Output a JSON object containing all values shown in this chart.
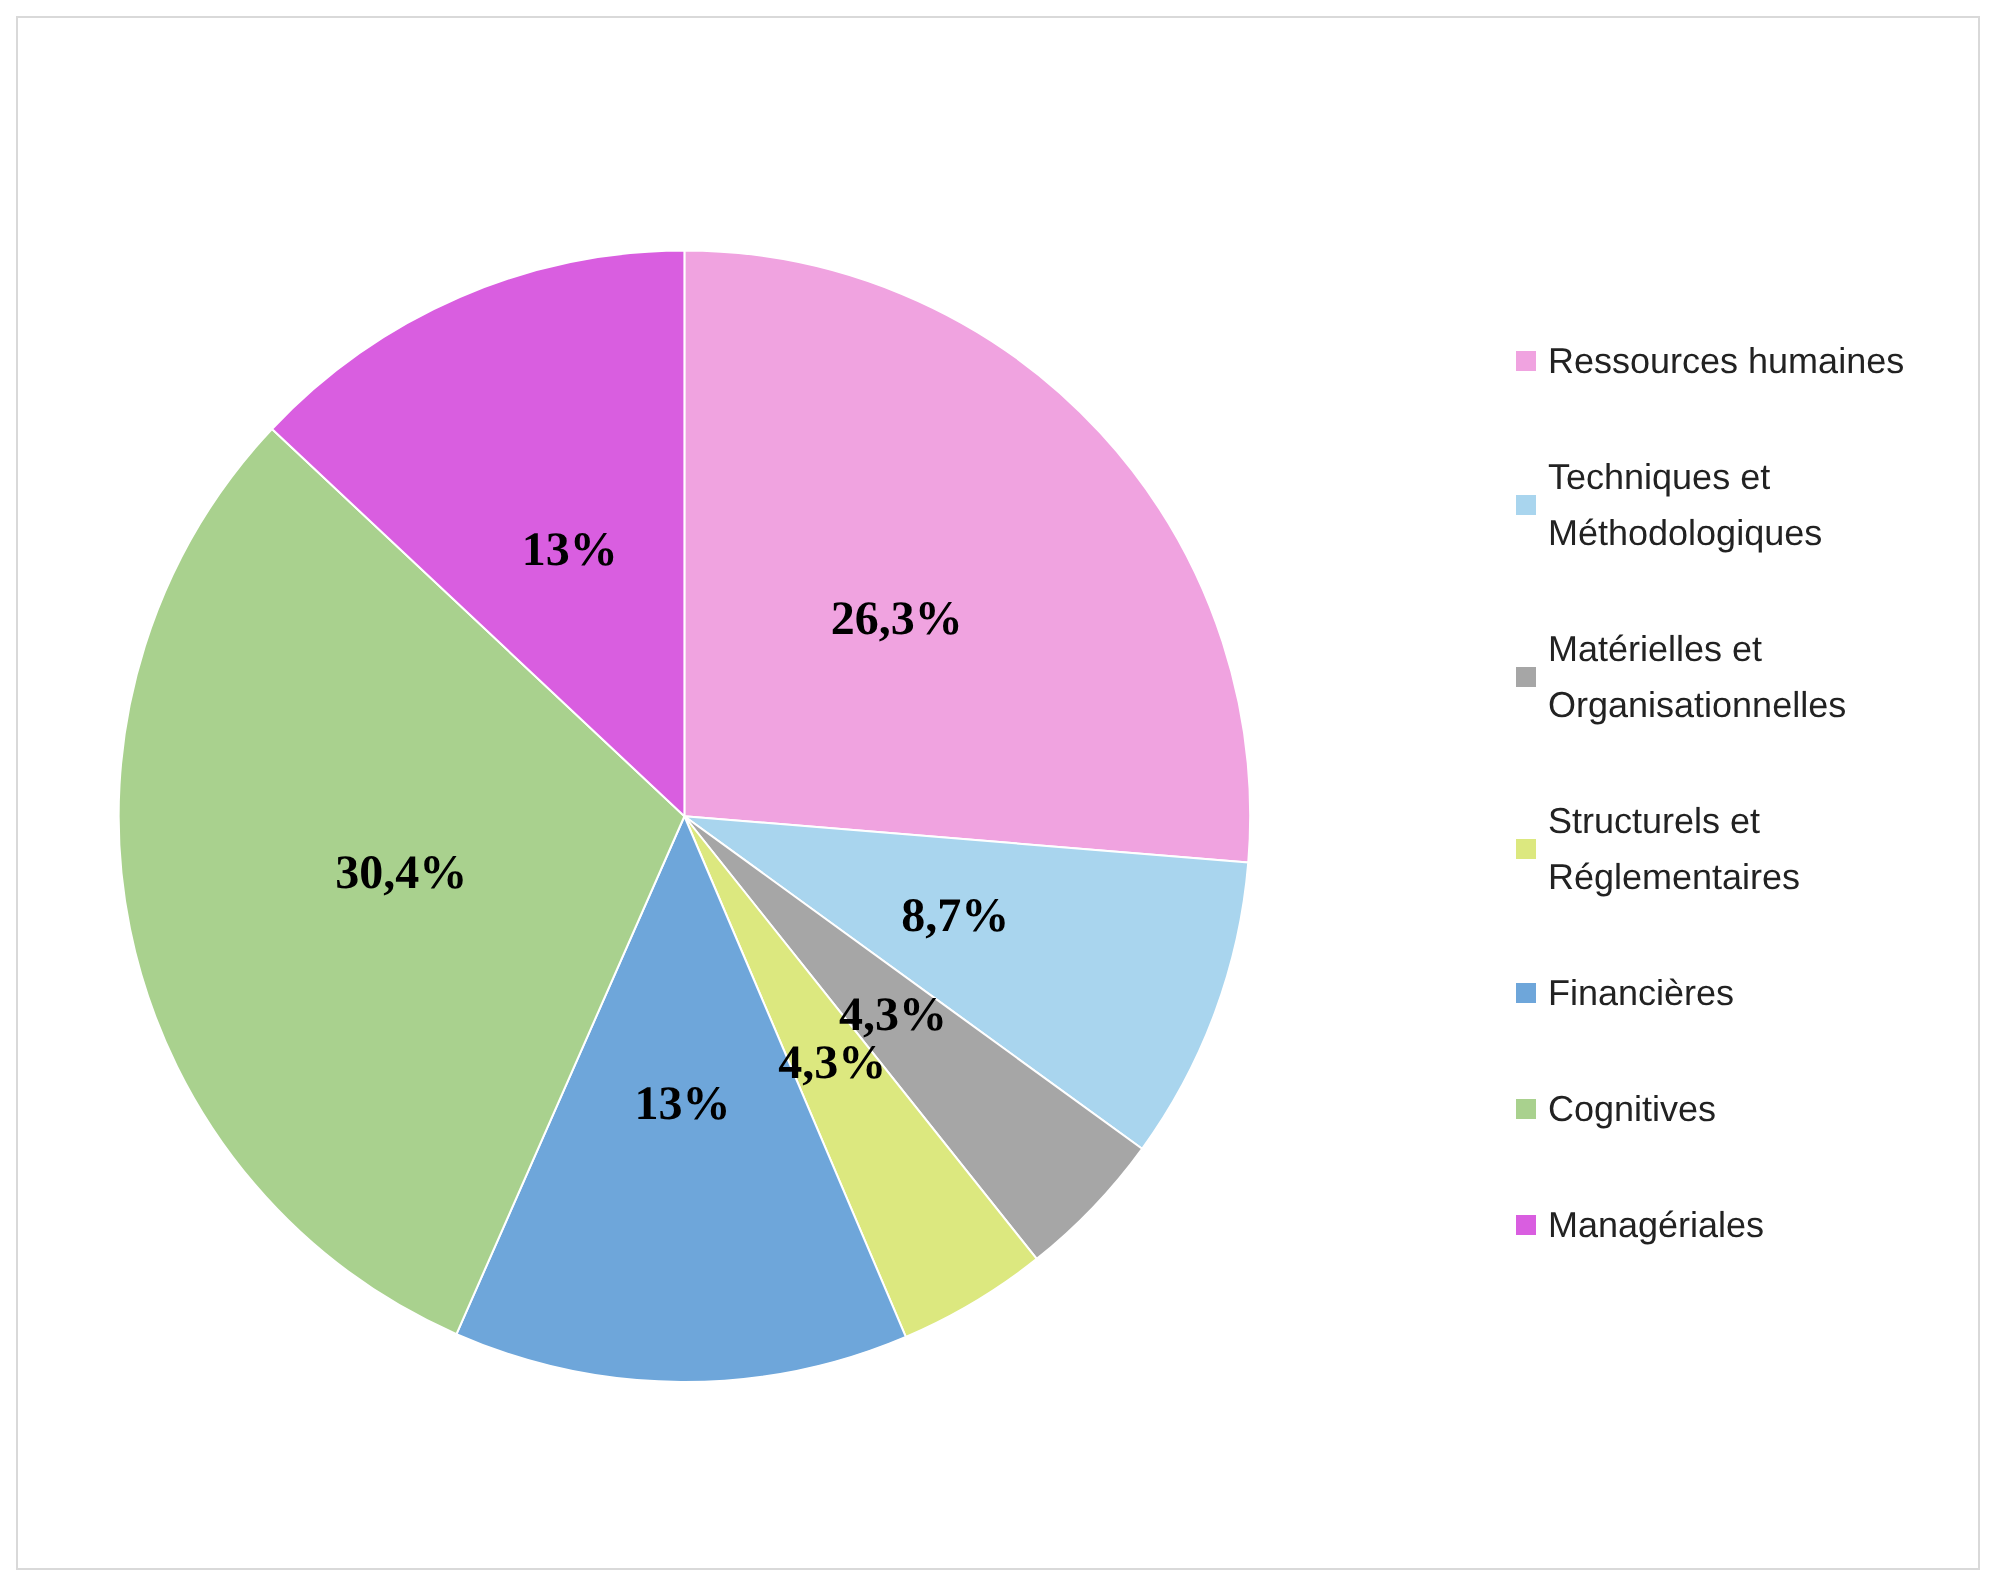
{
  "chart_data": {
    "type": "pie",
    "categories": [
      "Ressources humaines",
      "Techniques et Méthodologiques",
      "Matérielles et Organisationnelles",
      "Structurels et Réglementaires",
      "Financières",
      "Cognitives",
      "Managériales"
    ],
    "values": [
      26.3,
      8.7,
      4.3,
      4.3,
      13,
      30.4,
      13
    ],
    "value_labels": [
      "26,3%",
      "8,7%",
      "4,3%",
      "4,3%",
      "13%",
      "30,4%",
      "13%"
    ],
    "colors": [
      "#f0a3e0",
      "#a9d5ee",
      "#a6a6a6",
      "#dce87f",
      "#6ea6da",
      "#a9d18e",
      "#d95ee0"
    ],
    "legend": "right"
  }
}
